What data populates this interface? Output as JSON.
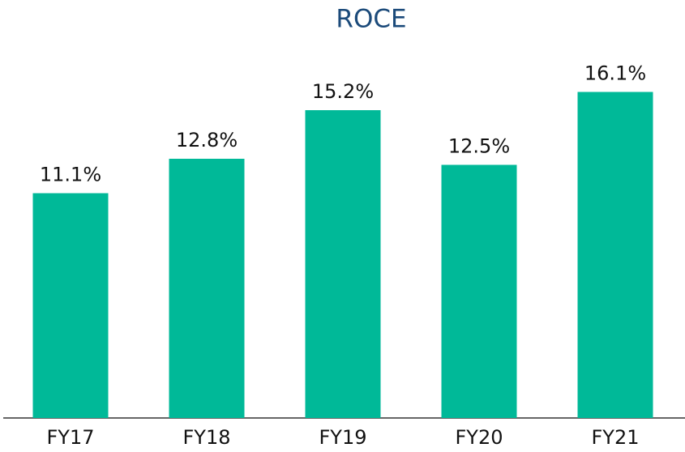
{
  "chart_data": {
    "type": "bar",
    "title": "ROCE",
    "categories": [
      "FY17",
      "FY18",
      "FY19",
      "FY20",
      "FY21"
    ],
    "values": [
      11.1,
      12.8,
      15.2,
      12.5,
      16.1
    ],
    "value_labels": [
      "11.1%",
      "12.8%",
      "15.2%",
      "12.5%",
      "16.1%"
    ],
    "color": "#00b998"
  }
}
